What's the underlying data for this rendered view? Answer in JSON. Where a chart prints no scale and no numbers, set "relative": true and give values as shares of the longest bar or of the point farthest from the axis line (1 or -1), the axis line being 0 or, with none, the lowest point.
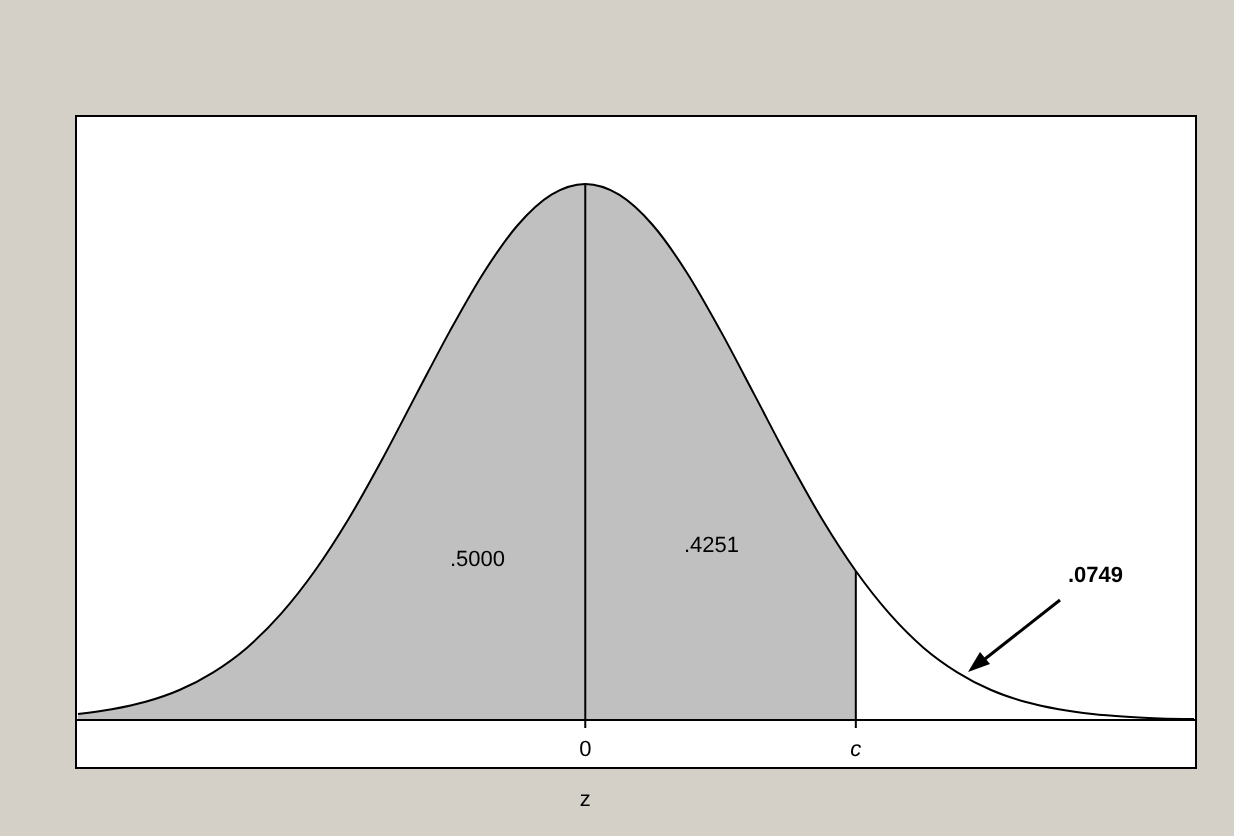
{
  "chart_data": {
    "type": "area",
    "relative": true,
    "xlabel": "z",
    "categories": [
      null,
      null,
      null,
      null,
      null,
      null,
      null,
      null,
      null,
      null,
      null,
      null,
      null,
      null,
      null,
      "0",
      null,
      null,
      null,
      null,
      null,
      null,
      null,
      "c",
      null,
      null,
      null,
      null,
      null,
      null,
      null,
      null,
      null,
      null
    ],
    "series": [
      {
        "color": "#c0c0c0",
        "values": [
          0.011,
          0.02,
          0.034,
          0.056,
          0.089,
          0.135,
          0.198,
          0.278,
          0.375,
          0.487,
          0.607,
          0.726,
          0.835,
          0.923,
          0.98,
          1,
          0.98,
          0.923,
          0.835,
          0.726,
          0.607,
          0.487,
          0.375,
          0.278,
          null,
          null,
          null,
          null,
          null,
          null,
          null,
          null,
          null,
          null
        ]
      },
      {
        "type": "line",
        "color": "#000000",
        "values": [
          0.011,
          0.02,
          0.034,
          0.056,
          0.089,
          0.135,
          0.198,
          0.278,
          0.375,
          0.487,
          0.607,
          0.726,
          0.835,
          0.923,
          0.98,
          1,
          0.98,
          0.923,
          0.835,
          0.726,
          0.607,
          0.487,
          0.375,
          0.278,
          0.198,
          0.135,
          0.089,
          0.056,
          0.034,
          0.02,
          0.011,
          0.006,
          0.003,
          0.002
        ]
      }
    ],
    "ref_lines": [
      {
        "axis": "x",
        "value": "0"
      },
      {
        "axis": "x",
        "value": "c"
      }
    ],
    "annotations": [
      ".5000",
      ".4251",
      ".0749"
    ]
  }
}
